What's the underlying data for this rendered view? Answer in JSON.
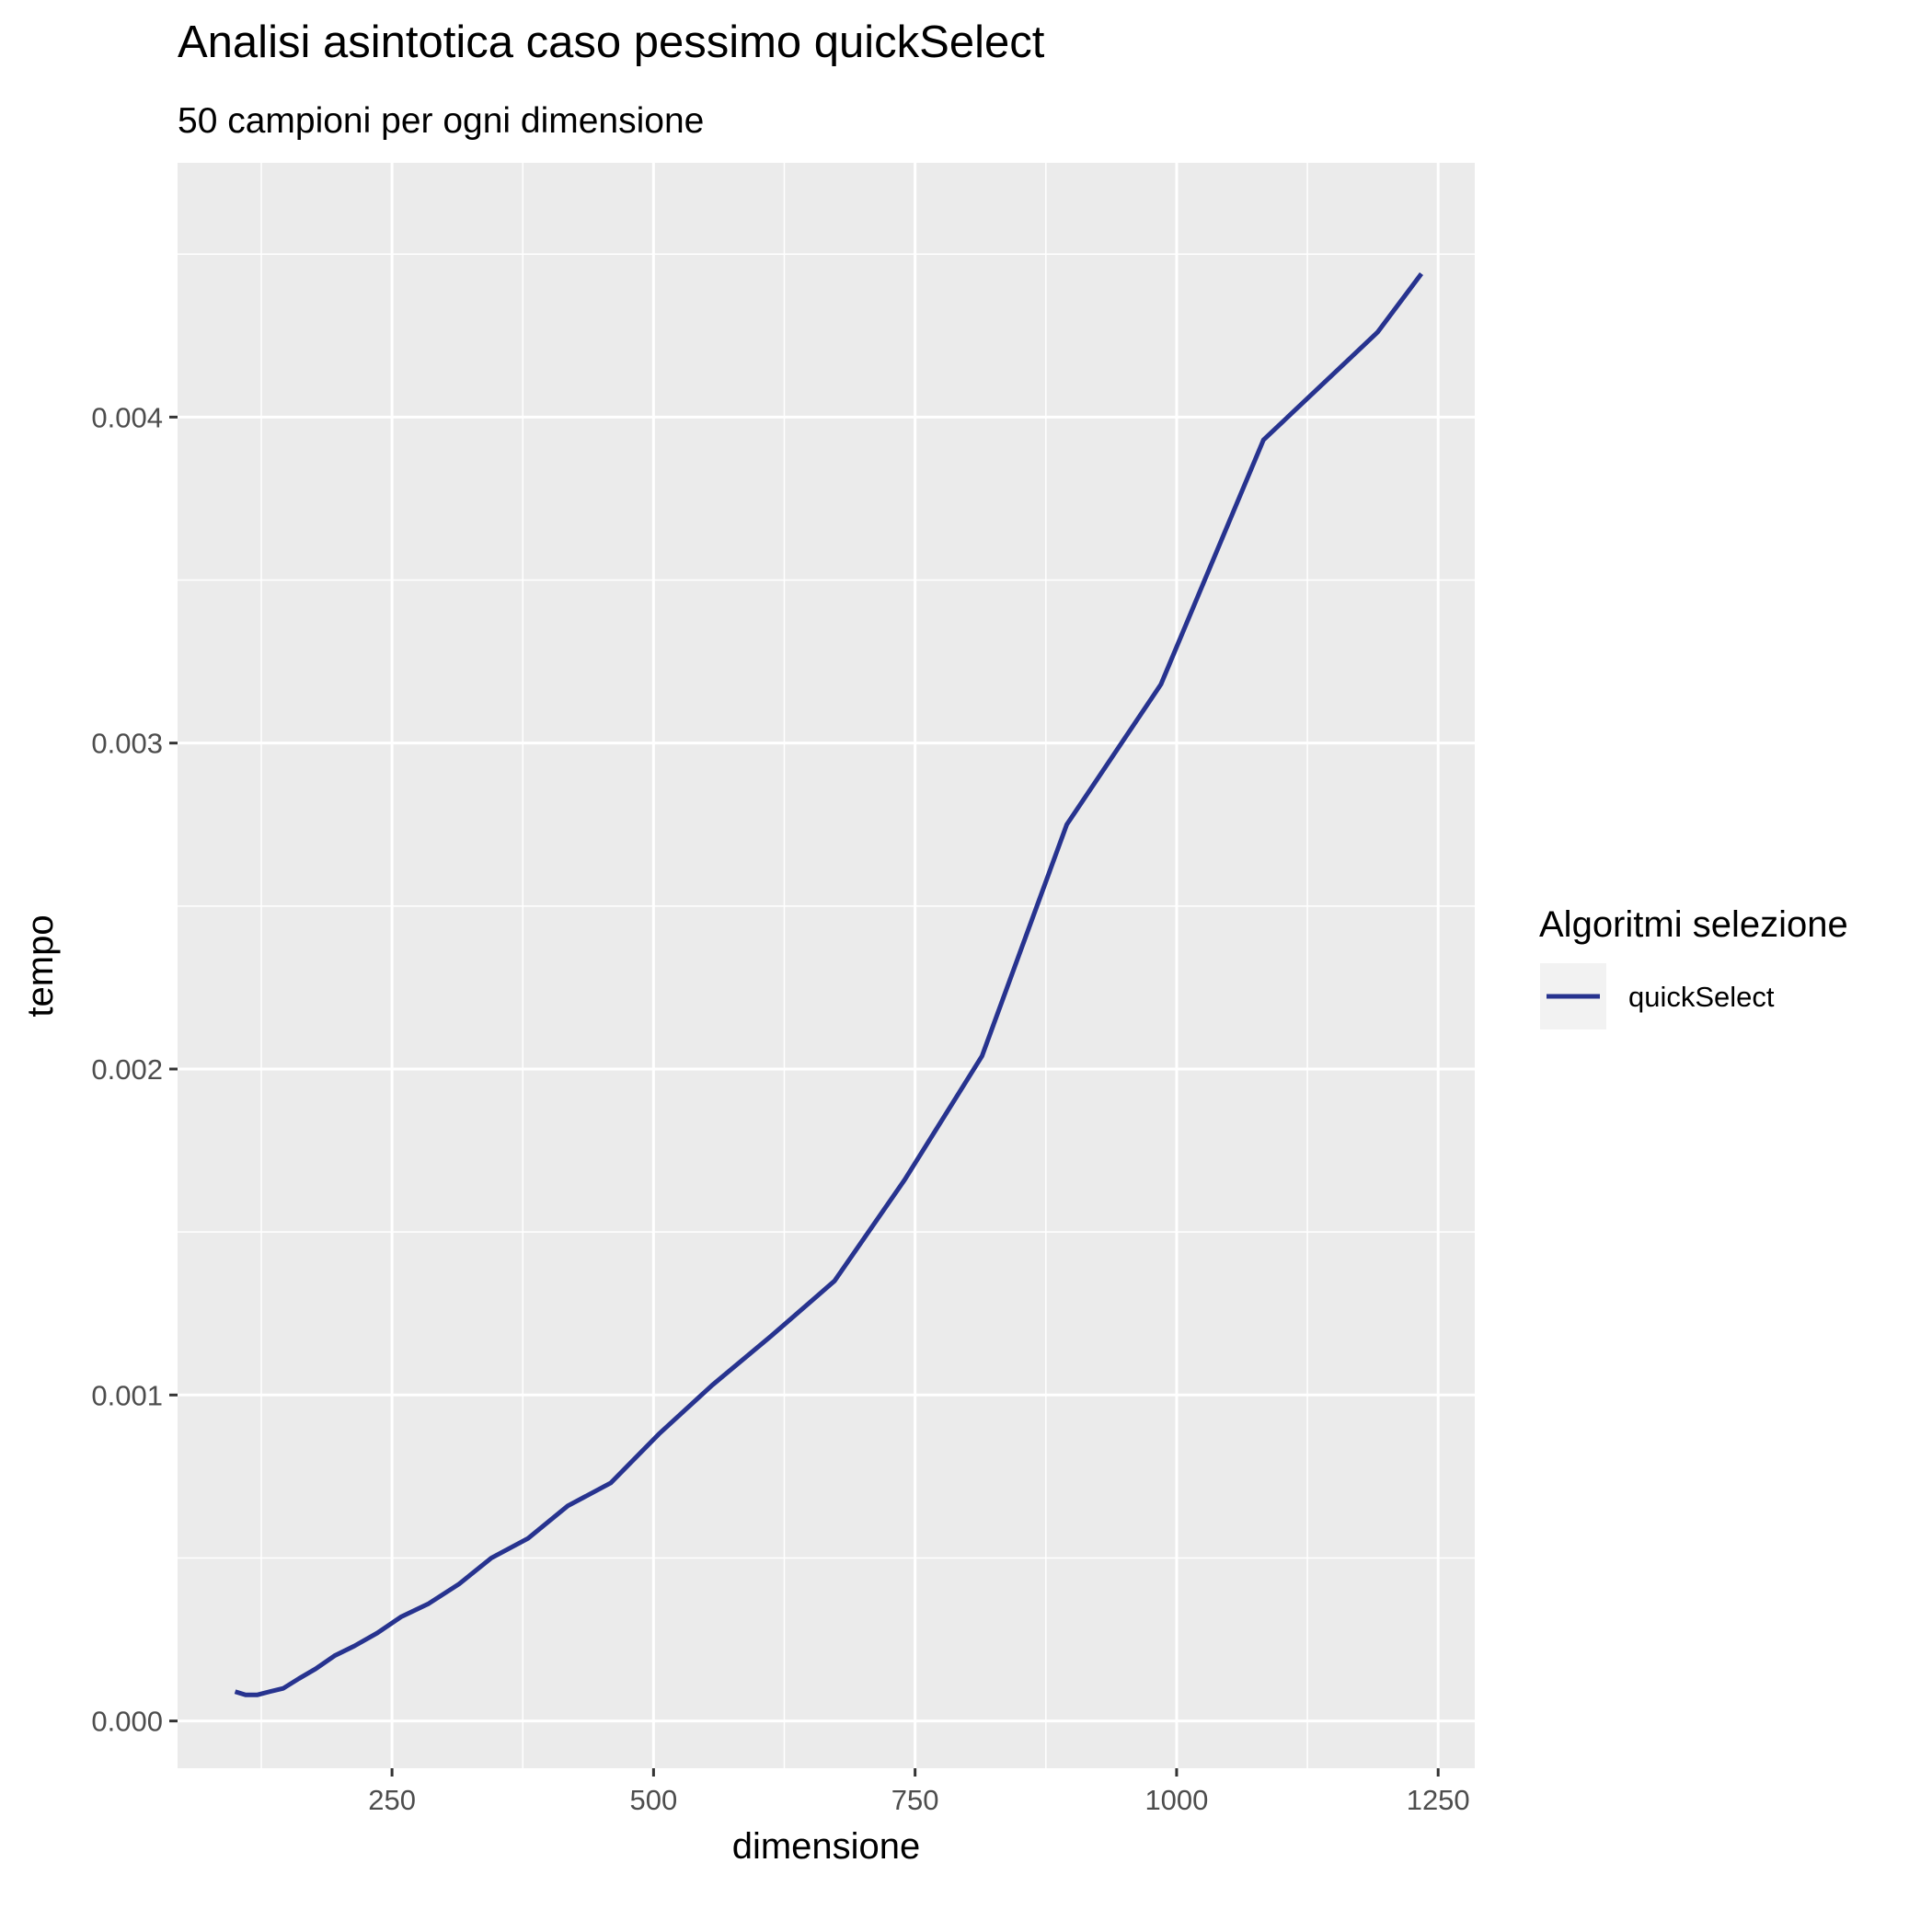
{
  "chart_data": {
    "type": "line",
    "title": "Analisi asintotica caso pessimo quickSelect",
    "subtitle": "50 campioni per ogni dimensione",
    "xlabel": "dimensione",
    "ylabel": "tempo",
    "xlim": [
      45,
      1285
    ],
    "ylim": [
      -0.000145,
      0.00478
    ],
    "x_ticks": [
      250,
      500,
      750,
      1000,
      1250
    ],
    "x_tick_labels": [
      "250",
      "500",
      "750",
      "1000",
      "1250"
    ],
    "y_ticks": [
      0,
      0.001,
      0.002,
      0.003,
      0.004
    ],
    "y_tick_labels": [
      "0.000",
      "0.001",
      "0.002",
      "0.003",
      "0.004"
    ],
    "grid": true,
    "legend": {
      "title": "Algoritmi selezione",
      "position": "right"
    },
    "series": [
      {
        "name": "quickSelect",
        "color": "#27338f",
        "x": [
          100,
          110,
          121,
          133,
          146,
          161,
          177,
          195,
          214,
          236,
          259,
          285,
          314,
          345,
          380,
          418,
          459,
          505,
          556,
          612,
          673,
          740,
          814,
          895,
          985,
          1083,
          1192,
          1234
        ],
        "y": [
          9e-05,
          8e-05,
          8e-05,
          9e-05,
          0.0001,
          0.00013,
          0.00016,
          0.0002,
          0.00023,
          0.00027,
          0.00032,
          0.00036,
          0.00042,
          0.0005,
          0.00056,
          0.00066,
          0.00073,
          0.00088,
          0.00103,
          0.00118,
          0.00135,
          0.00166,
          0.00204,
          0.00275,
          0.00318,
          0.00393,
          0.00426,
          0.00444
        ]
      }
    ]
  }
}
